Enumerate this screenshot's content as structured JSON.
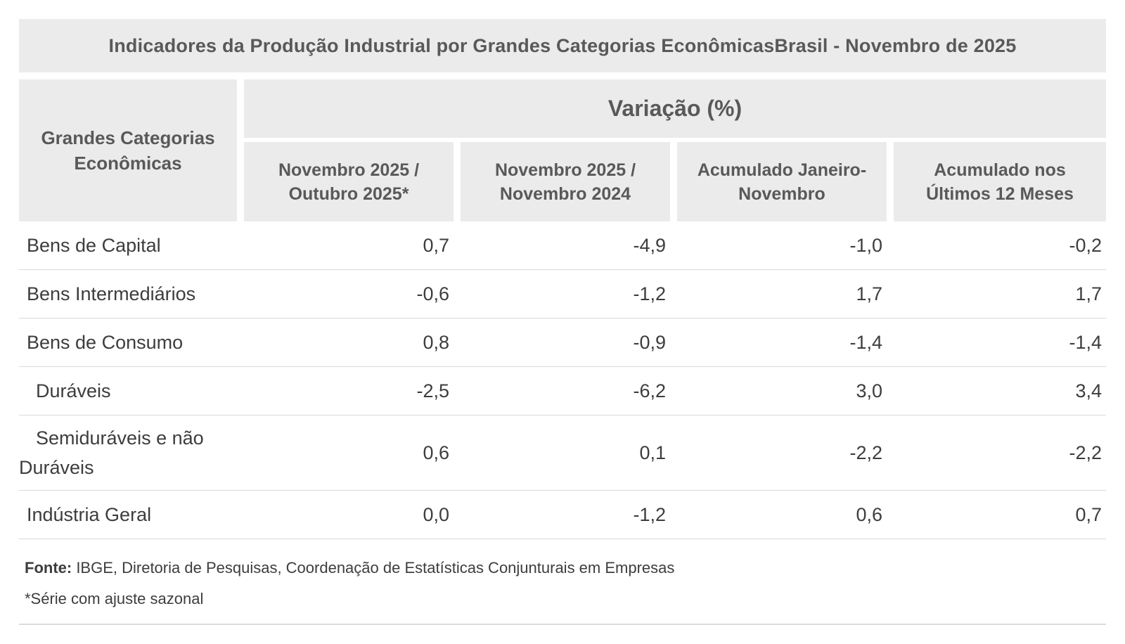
{
  "table": {
    "title": "Indicadores da Produção Industrial por Grandes Categorias EconômicasBrasil - Novembro de 2025",
    "row_header": {
      "line1": "Grandes Categorias",
      "line2": "Econômicas"
    },
    "group_header": "Variação (%)",
    "columns": [
      {
        "line1": "Novembro 2025 /",
        "line2": "Outubro 2025*"
      },
      {
        "line1": "Novembro 2025 /",
        "line2": "Novembro 2024"
      },
      {
        "line1": "Acumulado Janeiro-",
        "line2": "Novembro"
      },
      {
        "line1": "Acumulado nos",
        "line2": "Últimos 12 Meses"
      }
    ],
    "rows": [
      {
        "label": "Bens de Capital",
        "values": [
          "0,7",
          "-4,9",
          "-1,0",
          "-0,2"
        ]
      },
      {
        "label": "Bens Intermediários",
        "values": [
          "-0,6",
          "-1,2",
          "1,7",
          "1,7"
        ]
      },
      {
        "label": "Bens de Consumo",
        "values": [
          "0,8",
          "-0,9",
          "-1,4",
          "-1,4"
        ]
      },
      {
        "label": "Duráveis",
        "values": [
          "-2,5",
          "-6,2",
          "3,0",
          "3,4"
        ]
      },
      {
        "label": "Semiduráveis e não Duráveis",
        "values": [
          "0,6",
          "0,1",
          "-2,2",
          "-2,2"
        ]
      },
      {
        "label": "Indústria Geral",
        "values": [
          "0,0",
          "-1,2",
          "0,6",
          "0,7"
        ]
      }
    ],
    "footer": {
      "source_label": "Fonte:",
      "source_text": " IBGE, Diretoria de Pesquisas, Coordenação de Estatísticas Conjunturais em Empresas",
      "note": "*Série com ajuste sazonal"
    },
    "colors": {
      "header_bg": "#ebebeb",
      "header_text": "#595959",
      "body_text": "#3d3d3d",
      "separator": "#d9d9d9"
    }
  },
  "chart_data": {
    "type": "table",
    "title": "Indicadores da Produção Industrial por Grandes Categorias EconômicasBrasil - Novembro de 2025",
    "group_header": "Variação (%)",
    "columns": [
      "Novembro 2025 / Outubro 2025*",
      "Novembro 2025 / Novembro 2024",
      "Acumulado Janeiro-Novembro",
      "Acumulado nos Últimos 12 Meses"
    ],
    "rows": [
      {
        "category": "Bens de Capital",
        "values": [
          0.7,
          -4.9,
          -1.0,
          -0.2
        ]
      },
      {
        "category": "Bens Intermediários",
        "values": [
          -0.6,
          -1.2,
          1.7,
          1.7
        ]
      },
      {
        "category": "Bens de Consumo",
        "values": [
          0.8,
          -0.9,
          -1.4,
          -1.4
        ]
      },
      {
        "category": "Duráveis",
        "values": [
          -2.5,
          -6.2,
          3.0,
          3.4
        ]
      },
      {
        "category": "Semiduráveis e não Duráveis",
        "values": [
          0.6,
          0.1,
          -2.2,
          -2.2
        ]
      },
      {
        "category": "Indústria Geral",
        "values": [
          0.0,
          -1.2,
          0.6,
          0.7
        ]
      }
    ],
    "source": "Fonte: IBGE, Diretoria de Pesquisas, Coordenação de Estatísticas Conjunturais em Empresas",
    "note": "*Série com ajuste sazonal",
    "decimal_separator": ","
  }
}
